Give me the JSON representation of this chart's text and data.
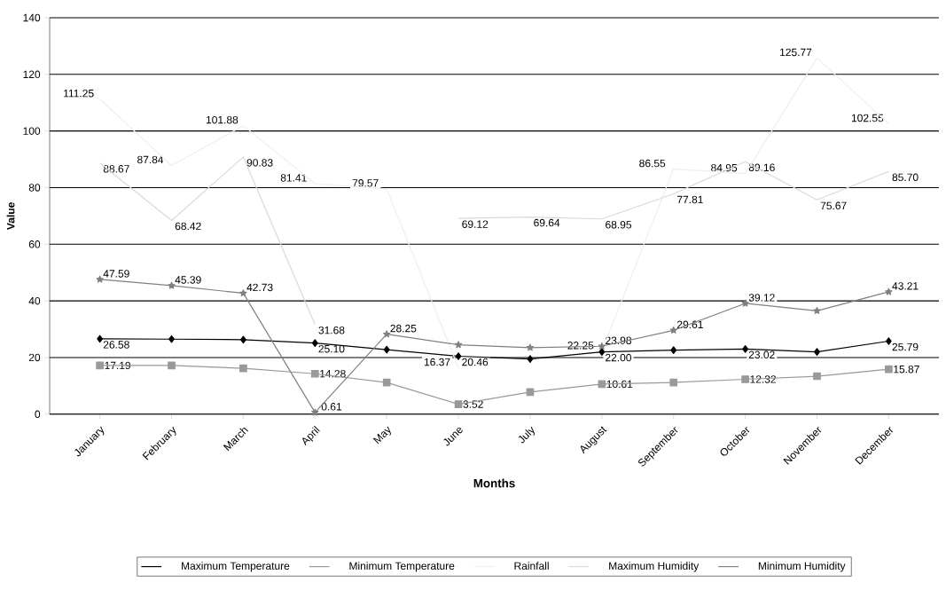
{
  "chart_data": {
    "type": "line",
    "xlabel": "Months",
    "ylabel": "Value",
    "categories": [
      "January",
      "February",
      "March",
      "April",
      "May",
      "June",
      "July",
      "August",
      "September",
      "October",
      "November",
      "December"
    ],
    "ylim": [
      0,
      140
    ],
    "yticks": [
      0,
      20,
      40,
      60,
      80,
      100,
      120,
      140
    ],
    "grid": "y",
    "legend": "bottom",
    "series": [
      {
        "name": "Maximum Temperature",
        "color": "#000000",
        "marker": "diamond",
        "values": [
          26.58,
          26.5,
          26.3,
          25.1,
          22.8,
          20.46,
          19.5,
          22.0,
          22.6,
          23.02,
          22.0,
          25.79
        ],
        "value_labels": [
          "26.58",
          null,
          null,
          "25.10",
          null,
          "20.46",
          null,
          "22.00",
          null,
          "23.02",
          null,
          "25.79"
        ]
      },
      {
        "name": "Minimum Temperature",
        "color": "#999999",
        "marker": "square",
        "values": [
          17.19,
          17.2,
          16.2,
          14.28,
          11.2,
          3.52,
          7.8,
          10.61,
          11.2,
          12.32,
          13.4,
          15.87
        ],
        "value_labels": [
          "17.19",
          null,
          null,
          "14.28",
          null,
          "3.52",
          null,
          "10.61",
          null,
          "12.32",
          null,
          "15.87"
        ]
      },
      {
        "name": "Rainfall",
        "color": "#eeeeee",
        "marker": "none",
        "values": [
          111.25,
          87.84,
          101.88,
          81.41,
          79.57,
          16.37,
          null,
          22.25,
          86.55,
          84.95,
          125.77,
          102.55
        ],
        "value_labels": [
          "111.25",
          "87.84",
          "101.88",
          "81.41",
          "79.57",
          "16.37",
          null,
          "22.25",
          "86.55",
          "84.95",
          "125.77",
          "102.55"
        ]
      },
      {
        "name": "Maximum Humidity",
        "color": "#d9d9d9",
        "marker": "none",
        "values": [
          88.67,
          68.42,
          90.83,
          31.68,
          null,
          69.12,
          69.64,
          68.95,
          77.81,
          89.16,
          75.67,
          85.7
        ],
        "value_labels": [
          "88.67",
          "68.42",
          "90.83",
          "31.68",
          null,
          "69.12",
          "69.64",
          "68.95",
          "77.81",
          "89.16",
          "75.67",
          "85.70"
        ]
      },
      {
        "name": "Minimum Humidity",
        "color": "#808080",
        "marker": "star",
        "values": [
          47.59,
          45.39,
          42.73,
          0.61,
          28.25,
          24.5,
          23.5,
          23.98,
          29.61,
          39.12,
          36.5,
          43.21
        ],
        "value_labels": [
          "47.59",
          "45.39",
          "42.73",
          "0.61",
          "28.25",
          null,
          null,
          "23.98",
          "29.61",
          "39.12",
          null,
          "43.21"
        ]
      }
    ]
  }
}
